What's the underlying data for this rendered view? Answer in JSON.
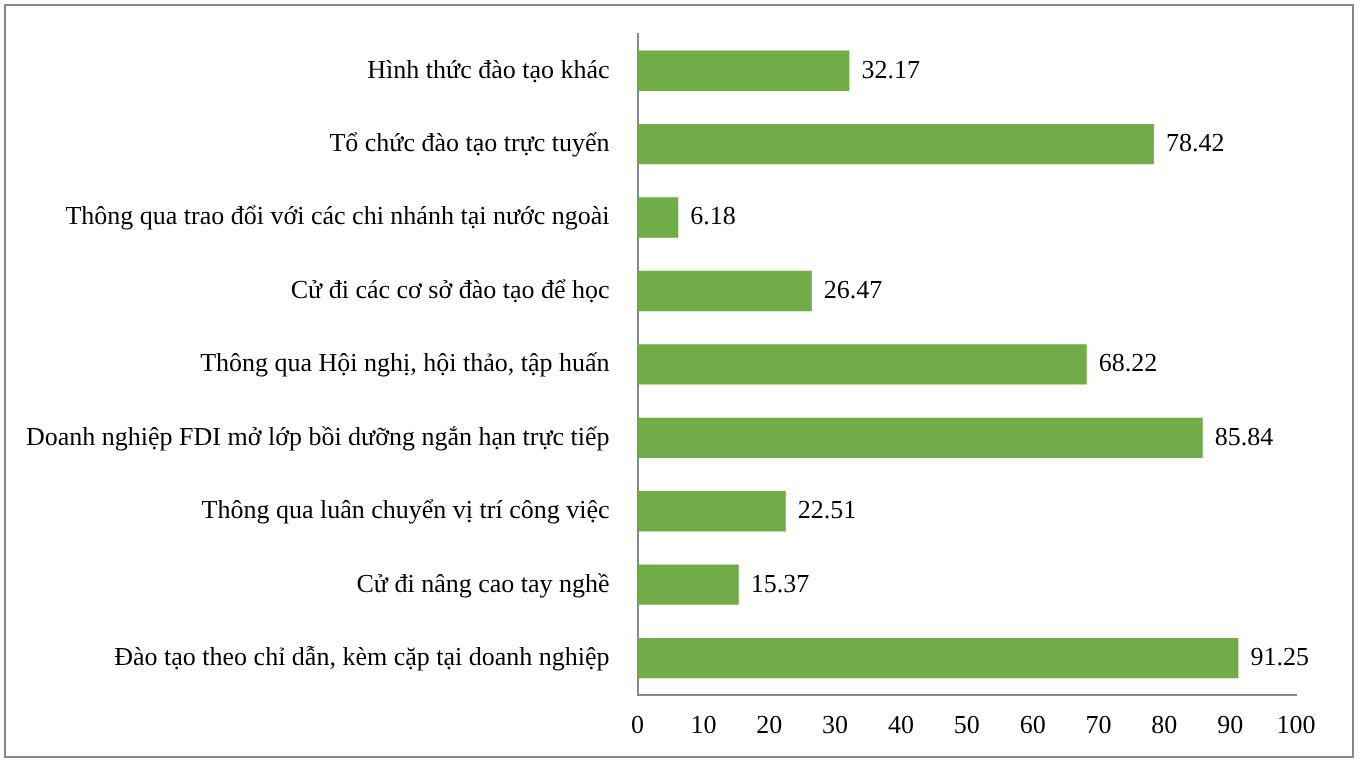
{
  "chart_data": {
    "type": "bar",
    "orientation": "horizontal",
    "categories": [
      "Hình thức đào tạo khác",
      "Tổ chức đào tạo trực tuyến",
      "Thông qua trao đổi với các chi nhánh tại nước ngoài",
      "Cử đi các cơ sở đào tạo để học",
      "Thông qua Hội nghị, hội thảo, tập huấn",
      "Doanh nghiệp FDI mở lớp bồi dưỡng ngắn hạn trực tiếp",
      "Thông qua luân chuyển vị trí công việc",
      "Cử đi nâng cao tay nghề",
      "Đào tạo theo chỉ dẫn, kèm cặp tại doanh nghiệp"
    ],
    "values": [
      32.17,
      78.42,
      6.18,
      26.47,
      68.22,
      85.84,
      22.51,
      15.37,
      91.25
    ],
    "color": "#70ad47",
    "data_labels": true,
    "grid": false,
    "legend": false,
    "xlim": [
      0,
      100
    ],
    "xticks": [
      0,
      10,
      20,
      30,
      40,
      50,
      60,
      70,
      80,
      90,
      100
    ]
  }
}
